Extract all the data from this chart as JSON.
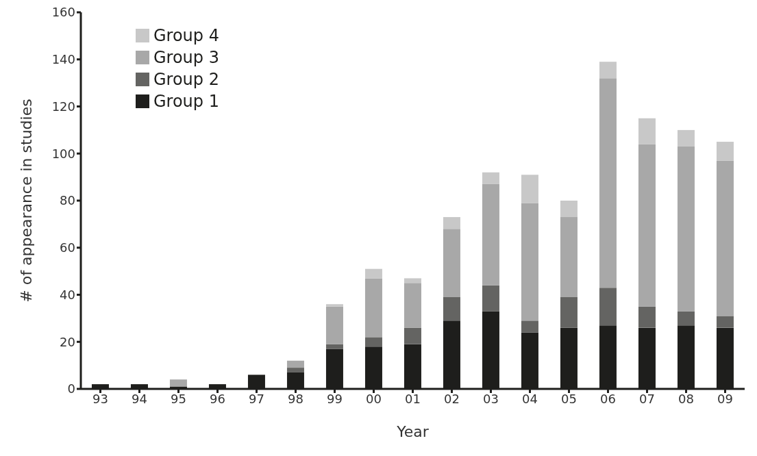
{
  "chart_data": {
    "type": "bar",
    "stacked": true,
    "xlabel": "Year",
    "ylabel": "# of appearance in studies",
    "categories": [
      "93",
      "94",
      "95",
      "96",
      "97",
      "98",
      "99",
      "00",
      "01",
      "02",
      "03",
      "04",
      "05",
      "06",
      "07",
      "08",
      "09"
    ],
    "series": [
      {
        "name": "Group 1",
        "color": "#1e1e1c",
        "values": [
          2,
          2,
          1,
          2,
          6,
          7,
          17,
          18,
          19,
          29,
          33,
          24,
          26,
          27,
          26,
          27,
          26
        ]
      },
      {
        "name": "Group 2",
        "color": "#646462",
        "values": [
          0,
          0,
          0,
          0,
          0,
          2,
          2,
          4,
          7,
          10,
          11,
          5,
          13,
          16,
          9,
          6,
          5
        ]
      },
      {
        "name": "Group 3",
        "color": "#a8a8a8",
        "values": [
          0,
          0,
          3,
          0,
          0,
          3,
          16,
          25,
          19,
          29,
          43,
          50,
          34,
          89,
          69,
          70,
          66
        ]
      },
      {
        "name": "Group 4",
        "color": "#c8c8c8",
        "values": [
          0,
          0,
          0,
          0,
          0,
          0,
          1,
          4,
          2,
          5,
          5,
          12,
          7,
          7,
          11,
          7,
          8
        ]
      }
    ],
    "ylim": [
      0,
      160
    ],
    "yticks": [
      0,
      20,
      40,
      60,
      80,
      100,
      120,
      140,
      160
    ],
    "grid": false,
    "legend": "top left"
  }
}
